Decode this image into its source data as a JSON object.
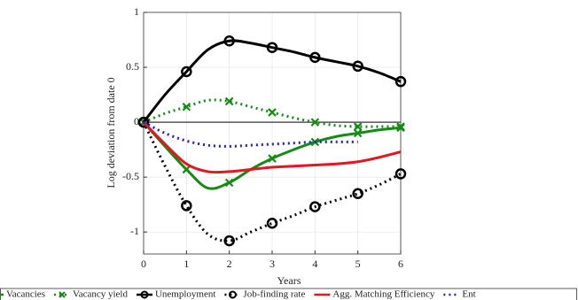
{
  "chart_data": {
    "type": "line",
    "xlabel": "Years",
    "ylabel": "Log deviation from date 0",
    "x": [
      0,
      0.5,
      1,
      1.5,
      2,
      2.5,
      3,
      3.5,
      4,
      4.5,
      5,
      5.5,
      6
    ],
    "xlim": [
      0,
      6
    ],
    "xticks": [
      0,
      1,
      2,
      3,
      4,
      5,
      6
    ],
    "ylim": [
      -1.2,
      1
    ],
    "yticks": [
      -1,
      -0.5,
      0,
      0.5,
      1
    ],
    "grid": true,
    "hline": 0,
    "legend": "bottom",
    "series": [
      {
        "name": "Vacancies",
        "color": "#148c14",
        "dash": "solid",
        "marker": "x",
        "values": [
          0,
          -0.22,
          -0.43,
          -0.6,
          -0.55,
          -0.43,
          -0.33,
          -0.25,
          -0.18,
          -0.13,
          -0.1,
          -0.07,
          -0.05
        ]
      },
      {
        "name": "Vacancy yield",
        "color": "#148c14",
        "dash": "dotted",
        "marker": "x",
        "values": [
          0,
          0.08,
          0.14,
          0.2,
          0.19,
          0.14,
          0.09,
          0.04,
          0.0,
          -0.03,
          -0.04,
          -0.04,
          -0.04
        ]
      },
      {
        "name": "Unemployment",
        "color": "#000000",
        "dash": "solid",
        "marker": "o",
        "values": [
          0,
          0.25,
          0.46,
          0.66,
          0.74,
          0.72,
          0.68,
          0.64,
          0.59,
          0.55,
          0.51,
          0.45,
          0.37
        ]
      },
      {
        "name": "Job-finding rate",
        "color": "#000000",
        "dash": "dotted",
        "marker": "o",
        "values": [
          0,
          -0.4,
          -0.76,
          -1.02,
          -1.08,
          -1.0,
          -0.92,
          -0.85,
          -0.77,
          -0.71,
          -0.65,
          -0.57,
          -0.47
        ]
      },
      {
        "name": "Agg. Matching Efficiency",
        "color": "#e8141e",
        "dash": "solid",
        "marker": "none",
        "values": [
          0,
          -0.2,
          -0.38,
          -0.45,
          -0.45,
          -0.43,
          -0.41,
          -0.4,
          -0.39,
          -0.38,
          -0.36,
          -0.32,
          -0.27
        ]
      },
      {
        "name": "Ent",
        "color": "#1e1ee6",
        "dash": "dotted",
        "marker": "none",
        "values": [
          0,
          -0.1,
          -0.17,
          -0.21,
          -0.22,
          -0.21,
          -0.2,
          -0.19,
          -0.18,
          -0.18,
          -0.18,
          null,
          null
        ]
      }
    ]
  }
}
